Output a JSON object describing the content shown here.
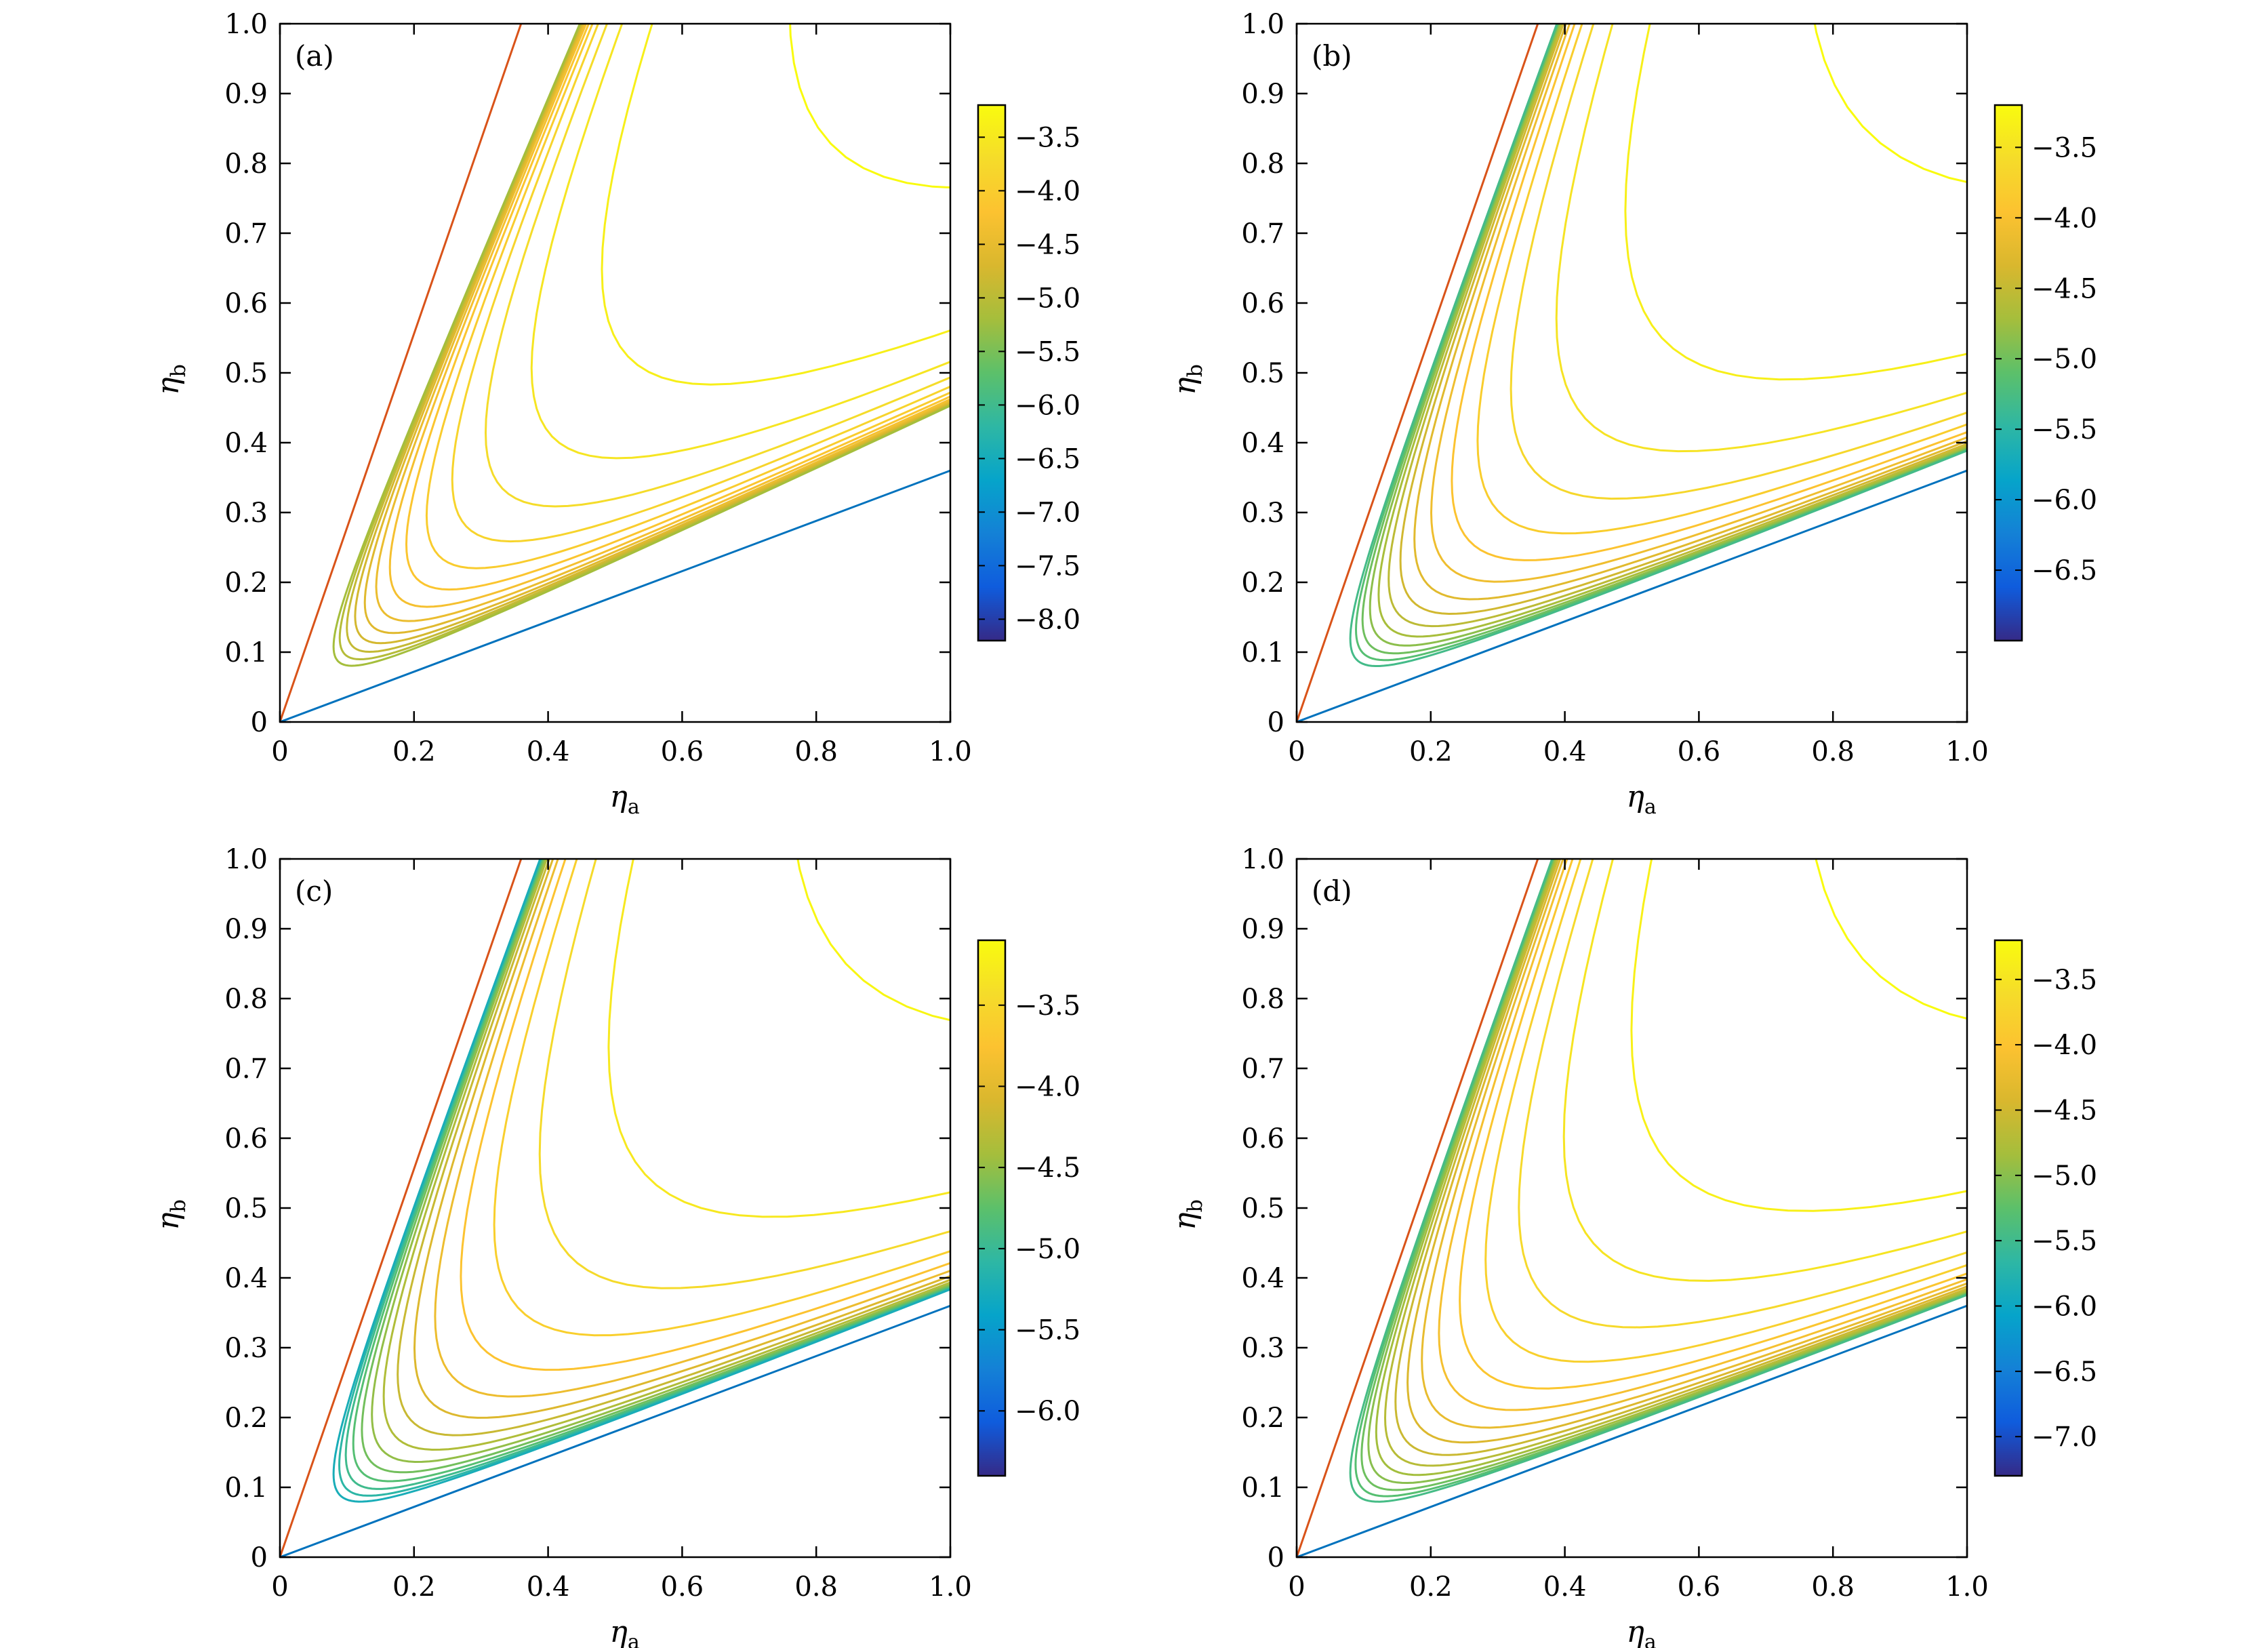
{
  "chart_data": [
    {
      "type": "contour",
      "panel_label": "(a)",
      "xlabel_main": "η",
      "xlabel_sub": "a",
      "ylabel_main": "η",
      "ylabel_sub": "b",
      "xlim": [
        0,
        1
      ],
      "ylim": [
        0,
        1
      ],
      "xticks": [
        "0",
        "0.2",
        "0.4",
        "0.6",
        "0.8",
        "1.0"
      ],
      "yticks": [
        "0",
        "0.1",
        "0.2",
        "0.3",
        "0.4",
        "0.5",
        "0.6",
        "0.7",
        "0.8",
        "0.9",
        "1.0"
      ],
      "boundary_lines": [
        {
          "color": "#d95319",
          "slope": 2.78
        },
        {
          "color": "#0072bd",
          "slope": 0.36
        }
      ],
      "contour_region": {
        "upper_slope": 2.25,
        "lower_slope": 0.45,
        "x_min": 0.05
      },
      "colorbar": {
        "min": -8.2,
        "max": -3.2,
        "ticks": [
          "−3.5",
          "−4.0",
          "−4.5",
          "−5.0",
          "−5.5",
          "−6.0",
          "−6.5",
          "−7.0",
          "−7.5",
          "−8.0"
        ]
      },
      "levels": [
        -3.2,
        -3.4,
        -3.55,
        -3.7,
        -3.85,
        -4.0,
        -4.15,
        -4.3,
        -4.45,
        -4.6,
        -4.75,
        -4.9,
        -5.05,
        -5.2
      ]
    },
    {
      "type": "contour",
      "panel_label": "(b)",
      "xlabel_main": "η",
      "xlabel_sub": "a",
      "ylabel_main": "η",
      "ylabel_sub": "b",
      "xlim": [
        0,
        1
      ],
      "ylim": [
        0,
        1
      ],
      "xticks": [
        "0",
        "0.2",
        "0.4",
        "0.6",
        "0.8",
        "1.0"
      ],
      "yticks": [
        "0",
        "0.1",
        "0.2",
        "0.3",
        "0.4",
        "0.5",
        "0.6",
        "0.7",
        "0.8",
        "0.9",
        "1.0"
      ],
      "boundary_lines": [
        {
          "color": "#d95319",
          "slope": 2.78
        },
        {
          "color": "#0072bd",
          "slope": 0.36
        }
      ],
      "contour_region": {
        "upper_slope": 2.6,
        "lower_slope": 0.385,
        "x_min": 0.01
      },
      "colorbar": {
        "min": -7.0,
        "max": -3.2,
        "ticks": [
          "−3.5",
          "−4.0",
          "−4.5",
          "−5.0",
          "−5.5",
          "−6.0",
          "−6.5"
        ]
      },
      "levels": [
        -3.2,
        -3.35,
        -3.5,
        -3.65,
        -3.8,
        -3.95,
        -4.1,
        -4.25,
        -4.4,
        -4.55,
        -4.7,
        -4.85,
        -5.0,
        -5.15,
        -5.3
      ]
    },
    {
      "type": "contour",
      "panel_label": "(c)",
      "xlabel_main": "η",
      "xlabel_sub": "a",
      "ylabel_main": "η",
      "ylabel_sub": "b",
      "xlim": [
        0,
        1
      ],
      "ylim": [
        0,
        1
      ],
      "xticks": [
        "0",
        "0.2",
        "0.4",
        "0.6",
        "0.8",
        "1.0"
      ],
      "yticks": [
        "0",
        "0.1",
        "0.2",
        "0.3",
        "0.4",
        "0.5",
        "0.6",
        "0.7",
        "0.8",
        "0.9",
        "1.0"
      ],
      "boundary_lines": [
        {
          "color": "#d95319",
          "slope": 2.78
        },
        {
          "color": "#0072bd",
          "slope": 0.36
        }
      ],
      "contour_region": {
        "upper_slope": 2.6,
        "lower_slope": 0.38,
        "x_min": 0.01
      },
      "colorbar": {
        "min": -6.4,
        "max": -3.1,
        "ticks": [
          "−3.5",
          "−4.0",
          "−4.5",
          "−5.0",
          "−5.5",
          "−6.0"
        ]
      },
      "levels": [
        -3.15,
        -3.3,
        -3.45,
        -3.6,
        -3.75,
        -3.9,
        -4.05,
        -4.2,
        -4.35,
        -4.5,
        -4.65,
        -4.8,
        -4.95,
        -5.1,
        -5.25
      ]
    },
    {
      "type": "contour",
      "panel_label": "(d)",
      "xlabel_main": "η",
      "xlabel_sub": "a",
      "ylabel_main": "η",
      "ylabel_sub": "b",
      "xlim": [
        0,
        1
      ],
      "ylim": [
        0,
        1
      ],
      "xticks": [
        "0",
        "0.2",
        "0.4",
        "0.6",
        "0.8",
        "1.0"
      ],
      "yticks": [
        "0",
        "0.1",
        "0.2",
        "0.3",
        "0.4",
        "0.5",
        "0.6",
        "0.7",
        "0.8",
        "0.9",
        "1.0"
      ],
      "boundary_lines": [
        {
          "color": "#d95319",
          "slope": 2.78
        },
        {
          "color": "#0072bd",
          "slope": 0.36
        }
      ],
      "contour_region": {
        "upper_slope": 2.65,
        "lower_slope": 0.372,
        "x_min": 0.01
      },
      "colorbar": {
        "min": -7.3,
        "max": -3.2,
        "ticks": [
          "−3.5",
          "−4.0",
          "−4.5",
          "−5.0",
          "−5.5",
          "−6.0",
          "−6.5",
          "−7.0"
        ]
      },
      "levels": [
        -3.2,
        -3.35,
        -3.5,
        -3.65,
        -3.8,
        -3.95,
        -4.1,
        -4.25,
        -4.4,
        -4.55,
        -4.7,
        -4.85,
        -5.0,
        -5.15,
        -5.3,
        -5.45
      ]
    }
  ]
}
